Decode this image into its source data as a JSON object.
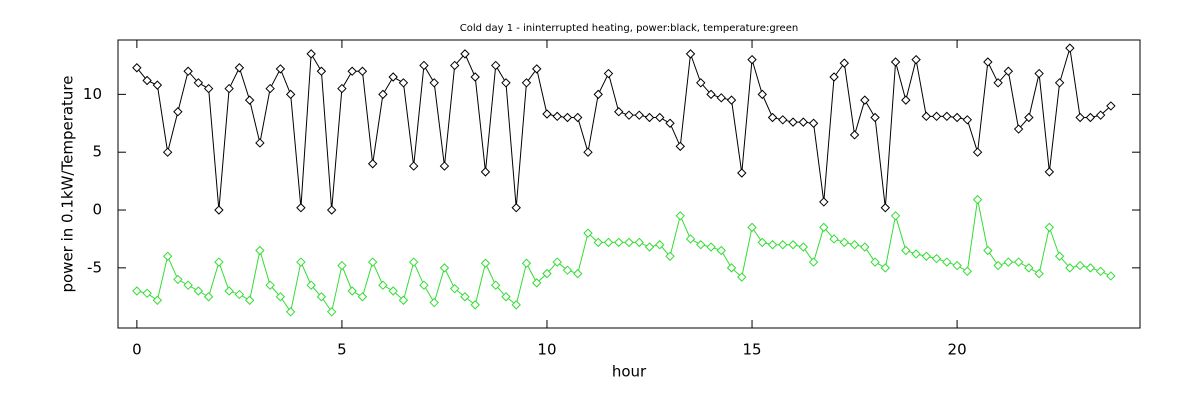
{
  "chart_data": {
    "type": "line",
    "title": "Cold day 1 - ininterrupted heating, power:black, temperature:green",
    "x_label": "hour",
    "y_label": "power in 0.1kW/Temperature",
    "x": [
      0,
      0.25,
      0.5,
      0.75,
      1,
      1.25,
      1.5,
      1.75,
      2,
      2.25,
      2.5,
      2.75,
      3,
      3.25,
      3.5,
      3.75,
      4,
      4.25,
      4.5,
      4.75,
      5,
      5.25,
      5.5,
      5.75,
      6,
      6.25,
      6.5,
      6.75,
      7,
      7.25,
      7.5,
      7.75,
      8,
      8.25,
      8.5,
      8.75,
      9,
      9.25,
      9.5,
      9.75,
      10,
      10.25,
      10.5,
      10.75,
      11,
      11.25,
      11.5,
      11.75,
      12,
      12.25,
      12.5,
      12.75,
      13,
      13.25,
      13.5,
      13.75,
      14,
      14.25,
      14.5,
      14.75,
      15,
      15.25,
      15.5,
      15.75,
      16,
      16.25,
      16.5,
      16.75,
      17,
      17.25,
      17.5,
      17.75,
      18,
      18.25,
      18.5,
      18.75,
      19,
      19.25,
      19.5,
      19.75,
      20,
      20.25,
      20.5,
      20.75,
      21,
      21.25,
      21.5,
      21.75,
      22,
      22.25,
      22.5,
      22.75,
      23,
      23.25,
      23.5,
      23.75
    ],
    "series": [
      {
        "name": "power",
        "color": "#000000",
        "values": [
          12.3,
          11.2,
          10.8,
          5,
          8.5,
          12,
          11,
          10.5,
          0,
          10.5,
          12.3,
          9.5,
          5.8,
          10.5,
          12.2,
          10,
          0.2,
          13.5,
          12,
          0,
          10.5,
          12,
          12,
          4,
          10,
          11.5,
          11,
          3.8,
          12.5,
          11,
          3.8,
          12.5,
          13.5,
          11.5,
          3.3,
          12.5,
          11,
          0.2,
          11,
          12.2,
          8.3,
          8.1,
          8,
          8,
          5,
          10,
          11.8,
          8.5,
          8.2,
          8.2,
          8,
          8,
          7.5,
          5.5,
          13.5,
          11,
          10,
          9.7,
          9.5,
          3.2,
          13,
          10,
          8,
          7.8,
          7.6,
          7.6,
          7.5,
          0.7,
          11.5,
          12.7,
          6.5,
          9.5,
          8,
          0.2,
          12.8,
          9.5,
          13,
          8.1,
          8.1,
          8.1,
          8,
          7.8,
          5,
          12.8,
          11,
          12,
          7,
          8,
          11.8,
          3.3,
          11,
          14,
          8,
          8,
          8.2,
          9
        ]
      },
      {
        "name": "temperature",
        "color": "#33dd33",
        "values": [
          -7,
          -7.2,
          -7.8,
          -4,
          -6,
          -6.5,
          -7,
          -7.5,
          -4.5,
          -7,
          -7.3,
          -7.8,
          -3.5,
          -6.5,
          -7.5,
          -8.8,
          -4.5,
          -6.5,
          -7.5,
          -8.8,
          -4.8,
          -7,
          -7.5,
          -4.5,
          -6.5,
          -7,
          -7.8,
          -4.5,
          -6.5,
          -8,
          -5,
          -6.8,
          -7.5,
          -8.2,
          -4.6,
          -6.5,
          -7.5,
          -8.2,
          -4.6,
          -6.3,
          -5.5,
          -4.5,
          -5.2,
          -5.5,
          -2,
          -2.8,
          -2.8,
          -2.8,
          -2.8,
          -2.8,
          -3.2,
          -3,
          -4,
          -0.5,
          -2.5,
          -3,
          -3.2,
          -3.5,
          -5,
          -5.8,
          -1.5,
          -2.8,
          -3,
          -3,
          -3,
          -3.2,
          -4.5,
          -1.5,
          -2.5,
          -2.8,
          -3,
          -3.2,
          -4.5,
          -5,
          -0.5,
          -3.5,
          -3.8,
          -4,
          -4.2,
          -4.5,
          -4.8,
          -5.3,
          0.9,
          -3.5,
          -4.8,
          -4.5,
          -4.5,
          -5,
          -5.5,
          -1.5,
          -4,
          -5,
          -4.8,
          -5,
          -5.3,
          -5.7
        ]
      }
    ],
    "xlim": [
      -0.46,
      24.46
    ],
    "ylim": [
      -10.2,
      14.7
    ],
    "xticks": [
      0,
      5,
      10,
      15,
      20
    ],
    "yticks": [
      -5,
      0,
      5,
      10
    ],
    "marker": "diamond"
  }
}
